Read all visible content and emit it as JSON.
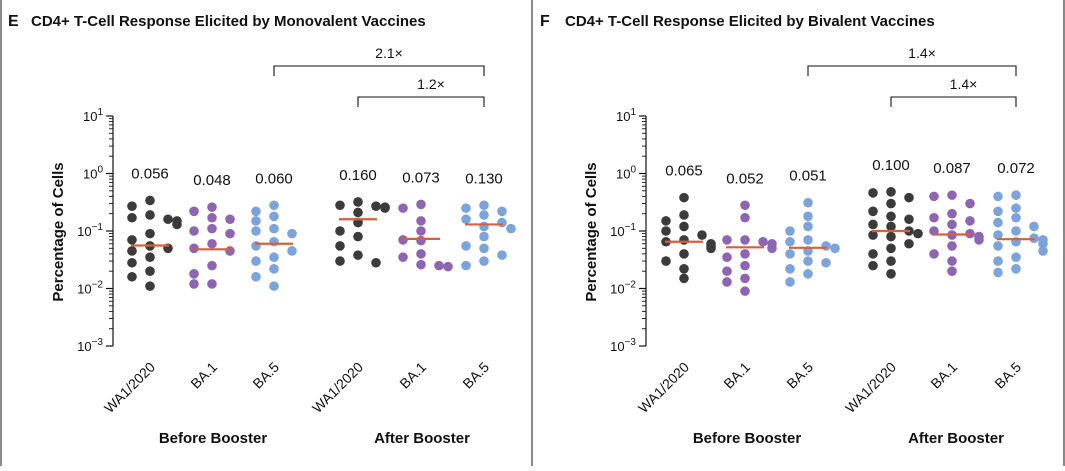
{
  "colors": {
    "WA1/2020": "#3b3b3b",
    "BA.1": "#8e65b3",
    "BA.5": "#7ba3dc",
    "median": "#d65f3f"
  },
  "chart_data": [
    {
      "type": "scatter",
      "panel": "E",
      "title": "CD4+ T-Cell Response Elicited by Monovalent Vaccines",
      "ylabel": "Percentage of Cells",
      "yscale": "log",
      "ylim": [
        0.001,
        10
      ],
      "yticks": [
        {
          "value": 0.001,
          "base": "10",
          "exp": "−3"
        },
        {
          "value": 0.01,
          "base": "10",
          "exp": "−2"
        },
        {
          "value": 0.1,
          "base": "10",
          "exp": "−1"
        },
        {
          "value": 1,
          "base": "10",
          "exp": "0"
        },
        {
          "value": 10,
          "base": "10",
          "exp": "1"
        }
      ],
      "groups": [
        {
          "label": "Before Booster",
          "categories": [
            0,
            1,
            2
          ]
        },
        {
          "label": "After Booster",
          "categories": [
            3,
            4,
            5
          ]
        }
      ],
      "categories": [
        {
          "label": "WA1/2020",
          "color_key": "WA1/2020",
          "median": 0.056,
          "median_label": "0.056",
          "values": [
            0.34,
            0.27,
            0.19,
            0.17,
            0.16,
            0.15,
            0.13,
            0.09,
            0.07,
            0.055,
            0.05,
            0.045,
            0.035,
            0.028,
            0.02,
            0.016,
            0.011
          ]
        },
        {
          "label": "BA.1",
          "color_key": "BA.1",
          "median": 0.048,
          "median_label": "0.048",
          "values": [
            0.26,
            0.22,
            0.17,
            0.16,
            0.11,
            0.1,
            0.09,
            0.06,
            0.05,
            0.045,
            0.025,
            0.018,
            0.012,
            0.012
          ]
        },
        {
          "label": "BA.5",
          "color_key": "BA.5",
          "median": 0.06,
          "median_label": "0.060",
          "values": [
            0.28,
            0.22,
            0.18,
            0.15,
            0.11,
            0.1,
            0.09,
            0.065,
            0.055,
            0.045,
            0.035,
            0.03,
            0.022,
            0.016,
            0.011
          ]
        },
        {
          "label": "WA1/2020",
          "color_key": "WA1/2020",
          "median": 0.16,
          "median_label": "0.160",
          "values": [
            0.32,
            0.28,
            0.27,
            0.26,
            0.25,
            0.21,
            0.14,
            0.1,
            0.08,
            0.055,
            0.038,
            0.03,
            0.028
          ]
        },
        {
          "label": "BA.1",
          "color_key": "BA.1",
          "median": 0.073,
          "median_label": "0.073",
          "values": [
            0.29,
            0.25,
            0.15,
            0.1,
            0.07,
            0.068,
            0.04,
            0.035,
            0.026,
            0.025,
            0.024
          ]
        },
        {
          "label": "BA.5",
          "color_key": "BA.5",
          "median": 0.13,
          "median_label": "0.130",
          "values": [
            0.28,
            0.25,
            0.22,
            0.19,
            0.16,
            0.14,
            0.12,
            0.11,
            0.08,
            0.055,
            0.05,
            0.038,
            0.03,
            0.025
          ]
        }
      ],
      "comparisons": [
        {
          "from": 2,
          "to": 5,
          "label": "2.1×"
        },
        {
          "from": 3,
          "to": 5,
          "label": "1.2×"
        }
      ]
    },
    {
      "type": "scatter",
      "panel": "F",
      "title": "CD4+ T-Cell Response Elicited by Bivalent Vaccines",
      "ylabel": "Percentage of Cells",
      "yscale": "log",
      "ylim": [
        0.001,
        10
      ],
      "yticks": [
        {
          "value": 0.001,
          "base": "10",
          "exp": "−3"
        },
        {
          "value": 0.01,
          "base": "10",
          "exp": "−2"
        },
        {
          "value": 0.1,
          "base": "10",
          "exp": "−1"
        },
        {
          "value": 1,
          "base": "10",
          "exp": "0"
        },
        {
          "value": 10,
          "base": "10",
          "exp": "1"
        }
      ],
      "groups": [
        {
          "label": "Before Booster",
          "categories": [
            0,
            1,
            2
          ]
        },
        {
          "label": "After Booster",
          "categories": [
            3,
            4,
            5
          ]
        }
      ],
      "categories": [
        {
          "label": "WA1/2020",
          "color_key": "WA1/2020",
          "median": 0.065,
          "median_label": "0.065",
          "values": [
            0.38,
            0.19,
            0.15,
            0.12,
            0.1,
            0.085,
            0.07,
            0.065,
            0.06,
            0.055,
            0.05,
            0.04,
            0.03,
            0.022,
            0.015
          ]
        },
        {
          "label": "BA.1",
          "color_key": "BA.1",
          "median": 0.052,
          "median_label": "0.052",
          "values": [
            0.28,
            0.17,
            0.07,
            0.07,
            0.065,
            0.06,
            0.05,
            0.04,
            0.035,
            0.025,
            0.02,
            0.015,
            0.013,
            0.009
          ]
        },
        {
          "label": "BA.5",
          "color_key": "BA.5",
          "median": 0.051,
          "median_label": "0.051",
          "values": [
            0.31,
            0.18,
            0.12,
            0.1,
            0.07,
            0.065,
            0.055,
            0.05,
            0.045,
            0.04,
            0.03,
            0.028,
            0.022,
            0.018,
            0.013
          ]
        },
        {
          "label": "WA1/2020",
          "color_key": "WA1/2020",
          "median": 0.1,
          "median_label": "0.100",
          "values": [
            0.48,
            0.46,
            0.38,
            0.3,
            0.22,
            0.18,
            0.16,
            0.13,
            0.12,
            0.1,
            0.09,
            0.085,
            0.08,
            0.06,
            0.05,
            0.04,
            0.03,
            0.025,
            0.018
          ]
        },
        {
          "label": "BA.1",
          "color_key": "BA.1",
          "median": 0.087,
          "median_label": "0.087",
          "values": [
            0.42,
            0.4,
            0.3,
            0.2,
            0.17,
            0.15,
            0.13,
            0.1,
            0.09,
            0.085,
            0.08,
            0.07,
            0.055,
            0.04,
            0.03,
            0.02
          ]
        },
        {
          "label": "BA.5",
          "color_key": "BA.5",
          "median": 0.072,
          "median_label": "0.072",
          "values": [
            0.42,
            0.4,
            0.25,
            0.22,
            0.17,
            0.14,
            0.12,
            0.1,
            0.085,
            0.075,
            0.07,
            0.065,
            0.06,
            0.055,
            0.045,
            0.035,
            0.03,
            0.022,
            0.019
          ]
        }
      ],
      "comparisons": [
        {
          "from": 2,
          "to": 5,
          "label": "1.4×"
        },
        {
          "from": 3,
          "to": 5,
          "label": "1.4×"
        }
      ]
    }
  ]
}
